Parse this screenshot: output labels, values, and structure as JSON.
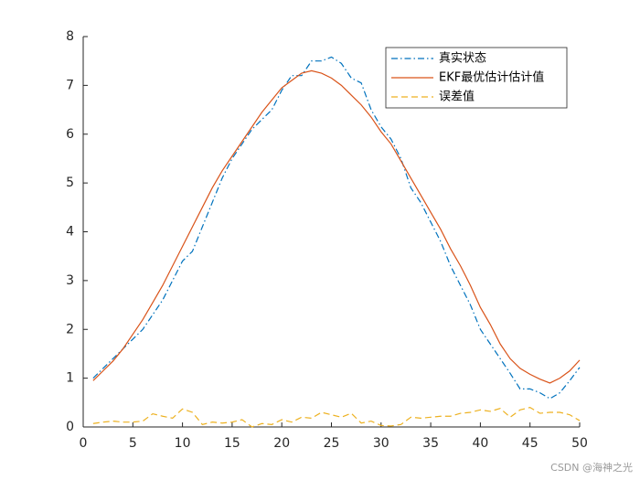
{
  "chart_data": {
    "type": "line",
    "x": [
      1,
      2,
      3,
      4,
      5,
      6,
      7,
      8,
      9,
      10,
      11,
      12,
      13,
      14,
      15,
      16,
      17,
      18,
      19,
      20,
      21,
      22,
      23,
      24,
      25,
      26,
      27,
      28,
      29,
      30,
      31,
      32,
      33,
      34,
      35,
      36,
      37,
      38,
      39,
      40,
      41,
      42,
      43,
      44,
      45,
      46,
      47,
      48,
      49,
      50
    ],
    "series": [
      {
        "name": "真实状态",
        "color": "#0072BD",
        "line_style": "-.",
        "values": [
          1.0,
          1.2,
          1.4,
          1.6,
          1.8,
          2.0,
          2.3,
          2.6,
          3.0,
          3.4,
          3.6,
          4.1,
          4.6,
          5.1,
          5.5,
          5.8,
          6.1,
          6.3,
          6.5,
          6.9,
          7.2,
          7.2,
          7.5,
          7.5,
          7.58,
          7.45,
          7.15,
          7.05,
          6.5,
          6.15,
          5.9,
          5.5,
          4.9,
          4.6,
          4.2,
          3.8,
          3.3,
          2.9,
          2.5,
          2.0,
          1.7,
          1.4,
          1.1,
          0.78,
          0.78,
          0.7,
          0.58,
          0.7,
          0.95,
          1.22
        ]
      },
      {
        "name": "EKF最优估计估计值",
        "color": "#D95319",
        "line_style": "-",
        "values": [
          0.95,
          1.15,
          1.35,
          1.6,
          1.9,
          2.2,
          2.55,
          2.9,
          3.3,
          3.7,
          4.1,
          4.5,
          4.9,
          5.25,
          5.55,
          5.85,
          6.15,
          6.45,
          6.7,
          6.95,
          7.1,
          7.25,
          7.3,
          7.25,
          7.15,
          7.0,
          6.8,
          6.6,
          6.35,
          6.05,
          5.8,
          5.45,
          5.1,
          4.75,
          4.4,
          4.05,
          3.65,
          3.3,
          2.9,
          2.45,
          2.1,
          1.7,
          1.4,
          1.2,
          1.08,
          0.98,
          0.9,
          1.0,
          1.15,
          1.37
        ]
      },
      {
        "name": "误差值",
        "color": "#EDB120",
        "line_style": "--",
        "values": [
          0.07,
          0.1,
          0.12,
          0.1,
          0.1,
          0.12,
          0.27,
          0.22,
          0.18,
          0.37,
          0.3,
          0.05,
          0.1,
          0.08,
          0.1,
          0.15,
          0.0,
          0.07,
          0.05,
          0.15,
          0.1,
          0.2,
          0.18,
          0.3,
          0.25,
          0.2,
          0.28,
          0.08,
          0.12,
          0.03,
          0.02,
          0.05,
          0.2,
          0.18,
          0.2,
          0.22,
          0.22,
          0.28,
          0.3,
          0.35,
          0.32,
          0.38,
          0.2,
          0.35,
          0.4,
          0.28,
          0.3,
          0.3,
          0.25,
          0.13
        ]
      }
    ],
    "xlim": [
      0,
      50
    ],
    "xticks": [
      0,
      5,
      10,
      15,
      20,
      25,
      30,
      35,
      40,
      45,
      50
    ],
    "ylim": [
      0,
      8
    ],
    "yticks": [
      0,
      1,
      2,
      3,
      4,
      5,
      6,
      7,
      8
    ],
    "grid": false,
    "legend": "top-right",
    "watermark": "CSDN @海神之光"
  }
}
